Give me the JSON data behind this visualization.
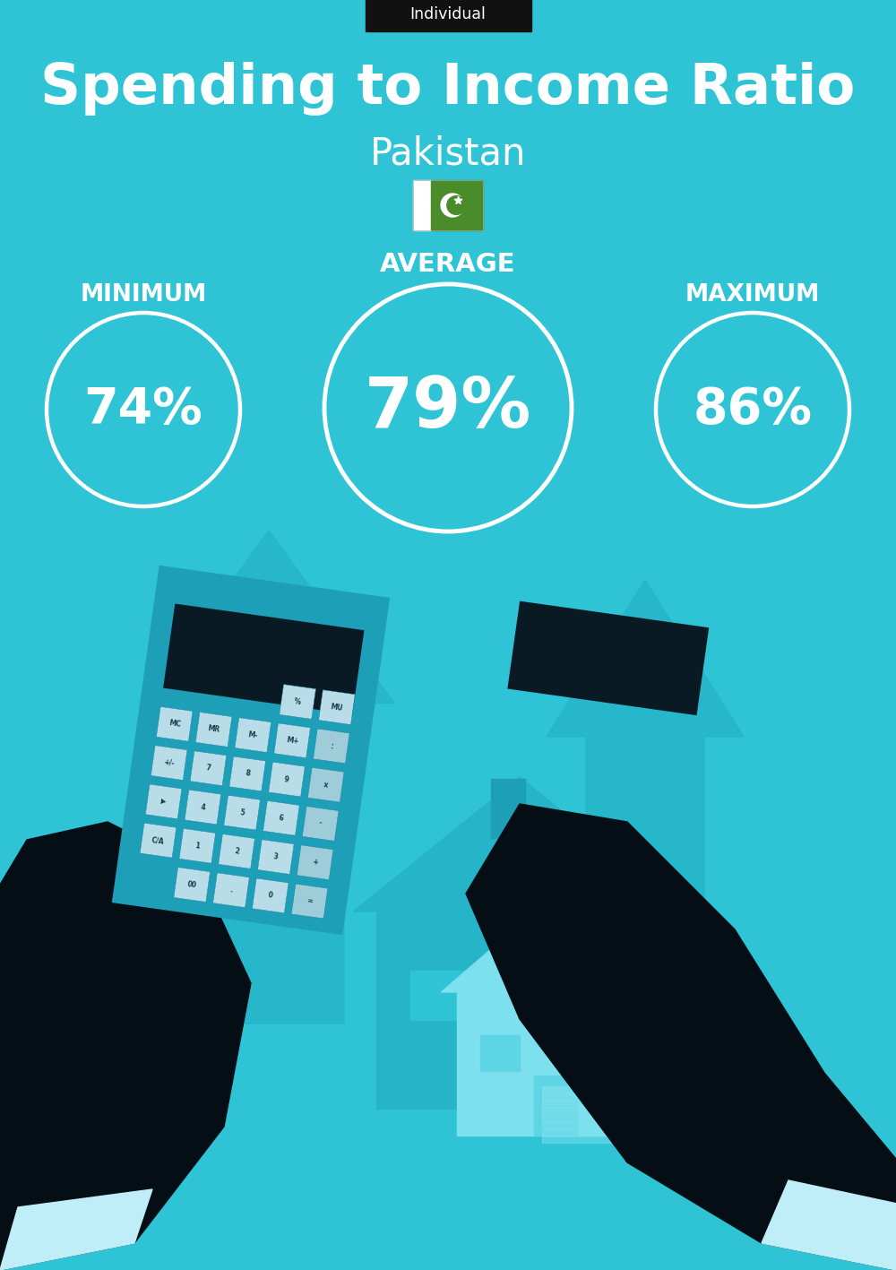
{
  "bg_color": "#2EC4D6",
  "title": "Spending to Income Ratio",
  "subtitle": "Pakistan",
  "tag_text": "Individual",
  "tag_bg": "#111111",
  "title_color": "#ffffff",
  "subtitle_color": "#ffffff",
  "label_color": "#ffffff",
  "value_color": "#ffffff",
  "circle_stroke": "#ffffff",
  "circle_fill": "#2EC4D6",
  "avg_label": "AVERAGE",
  "min_label": "MINIMUM",
  "max_label": "MAXIMUM",
  "avg_value": "79%",
  "min_value": "74%",
  "max_value": "86%",
  "flag_white": "#ffffff",
  "flag_green": "#4a8c2a",
  "arrow_color": "#26B5C8",
  "house_color": "#26B5C8",
  "house_light": "#7DE0EE",
  "calc_body": "#1E9FB8",
  "calc_screen_top": "#0a1a25",
  "calc_screen_bot": "#1a4a5a",
  "calc_btn": "#B8DDE8",
  "calc_btn_op": "#9ECCD8",
  "hand_color": "#050e14",
  "cuff_color": "#C0EEF8",
  "bag_color_dark": "#1580A0",
  "bag_color_light": "#1AAABB",
  "dollar_color": "#C8AA20",
  "money_stack": "#7DE0EE",
  "chimney_color": "#1E9FB8"
}
